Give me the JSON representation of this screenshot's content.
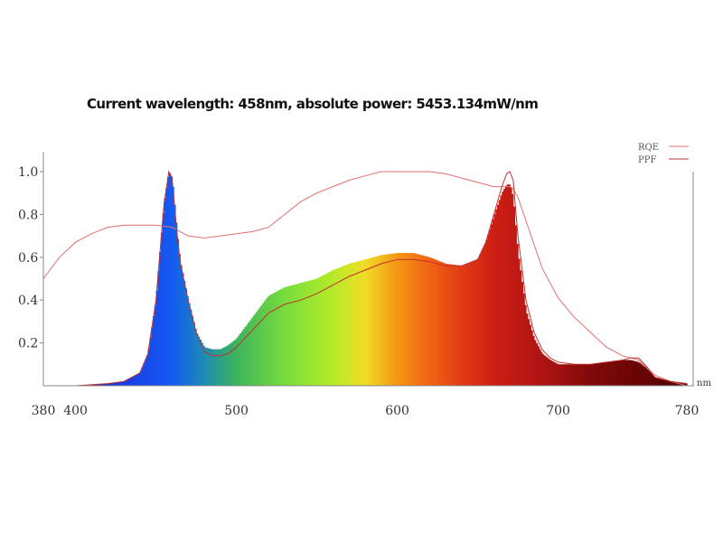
{
  "header": {
    "readout": "Current wavelength: 458nm, absolute power: 5453.134mW/nm"
  },
  "chart_data": {
    "type": "area",
    "x_unit": "nm",
    "xlim": [
      380,
      780
    ],
    "ylim": [
      0,
      1.0
    ],
    "x_ticks": [
      380,
      400,
      500,
      600,
      700,
      780
    ],
    "x_tick_labels": [
      "380",
      "400",
      "500",
      "600",
      "700",
      "780"
    ],
    "y_ticks": [
      0.2,
      0.4,
      0.6,
      0.8,
      1.0
    ],
    "y_tick_labels": [
      "0.2",
      "0.4",
      "0.6",
      "0.8",
      "1.0"
    ],
    "legend": {
      "position": "top-right",
      "entries": [
        "RQE",
        "PPF"
      ]
    },
    "spectrum": {
      "x": [
        380,
        400,
        420,
        430,
        440,
        445,
        450,
        455,
        458,
        460,
        463,
        465,
        470,
        475,
        480,
        485,
        490,
        495,
        500,
        510,
        520,
        530,
        540,
        550,
        560,
        570,
        580,
        590,
        600,
        610,
        620,
        630,
        640,
        650,
        655,
        660,
        665,
        668,
        670,
        672,
        675,
        680,
        685,
        690,
        695,
        700,
        710,
        720,
        730,
        740,
        745,
        750,
        755,
        760,
        770,
        780
      ],
      "y": [
        0.0,
        0.0,
        0.01,
        0.02,
        0.06,
        0.15,
        0.4,
        0.85,
        1.0,
        0.97,
        0.72,
        0.58,
        0.4,
        0.25,
        0.18,
        0.17,
        0.17,
        0.19,
        0.22,
        0.32,
        0.42,
        0.46,
        0.48,
        0.5,
        0.54,
        0.57,
        0.59,
        0.61,
        0.62,
        0.62,
        0.6,
        0.57,
        0.56,
        0.59,
        0.67,
        0.79,
        0.9,
        0.94,
        0.94,
        0.88,
        0.62,
        0.35,
        0.22,
        0.15,
        0.12,
        0.1,
        0.1,
        0.1,
        0.11,
        0.12,
        0.12,
        0.11,
        0.08,
        0.04,
        0.02,
        0.01
      ]
    },
    "series": [
      {
        "name": "RQE",
        "color": "#e07070",
        "x": [
          380,
          390,
          400,
          410,
          420,
          430,
          440,
          450,
          460,
          465,
          470,
          480,
          490,
          500,
          510,
          520,
          530,
          540,
          550,
          560,
          570,
          580,
          590,
          600,
          610,
          620,
          630,
          640,
          650,
          660,
          665,
          670,
          672,
          675,
          680,
          690,
          700,
          710,
          720,
          730,
          740,
          750,
          760,
          770,
          780
        ],
        "y": [
          0.5,
          0.6,
          0.67,
          0.71,
          0.74,
          0.75,
          0.75,
          0.75,
          0.74,
          0.72,
          0.7,
          0.69,
          0.7,
          0.71,
          0.72,
          0.74,
          0.8,
          0.86,
          0.9,
          0.93,
          0.96,
          0.98,
          1.0,
          1.0,
          1.0,
          1.0,
          0.99,
          0.97,
          0.95,
          0.93,
          0.93,
          0.93,
          0.92,
          0.88,
          0.77,
          0.55,
          0.41,
          0.32,
          0.25,
          0.18,
          0.14,
          0.12,
          0.05,
          0.02,
          0.0
        ]
      },
      {
        "name": "PPF",
        "color": "#c03030",
        "x": [
          380,
          400,
          420,
          430,
          440,
          445,
          450,
          455,
          458,
          460,
          463,
          465,
          470,
          475,
          480,
          485,
          490,
          495,
          500,
          510,
          520,
          530,
          540,
          550,
          560,
          570,
          580,
          590,
          600,
          610,
          620,
          630,
          640,
          650,
          655,
          660,
          665,
          668,
          670,
          672,
          675,
          680,
          685,
          690,
          695,
          700,
          710,
          720,
          730,
          740,
          745,
          750,
          755,
          760,
          770,
          780
        ],
        "y": [
          0.0,
          0.0,
          0.01,
          0.02,
          0.06,
          0.15,
          0.4,
          0.85,
          1.0,
          0.97,
          0.72,
          0.58,
          0.4,
          0.25,
          0.16,
          0.14,
          0.14,
          0.15,
          0.18,
          0.26,
          0.34,
          0.38,
          0.4,
          0.43,
          0.47,
          0.51,
          0.54,
          0.57,
          0.59,
          0.59,
          0.58,
          0.56,
          0.56,
          0.59,
          0.67,
          0.8,
          0.93,
          0.99,
          1.0,
          0.96,
          0.7,
          0.4,
          0.25,
          0.17,
          0.13,
          0.11,
          0.1,
          0.1,
          0.11,
          0.12,
          0.13,
          0.13,
          0.09,
          0.04,
          0.02,
          0.01
        ]
      }
    ]
  }
}
